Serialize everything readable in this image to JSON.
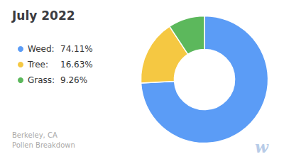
{
  "chart_data": {
    "type": "pie",
    "title": "July 2022",
    "subtitle": "Berkeley, CA\nPollen Breakdown",
    "categories": [
      "Weed:",
      "Tree:",
      "Grass:"
    ],
    "values": [
      74.11,
      16.63,
      9.26
    ],
    "value_labels": [
      "74.11%",
      "16.63%",
      "9.26%"
    ],
    "colors": [
      "#5b9cf6",
      "#f5c842",
      "#5cb85c"
    ],
    "legend": "left",
    "annotations": [
      {
        "text": "w",
        "color": "#b8cce8"
      }
    ]
  }
}
